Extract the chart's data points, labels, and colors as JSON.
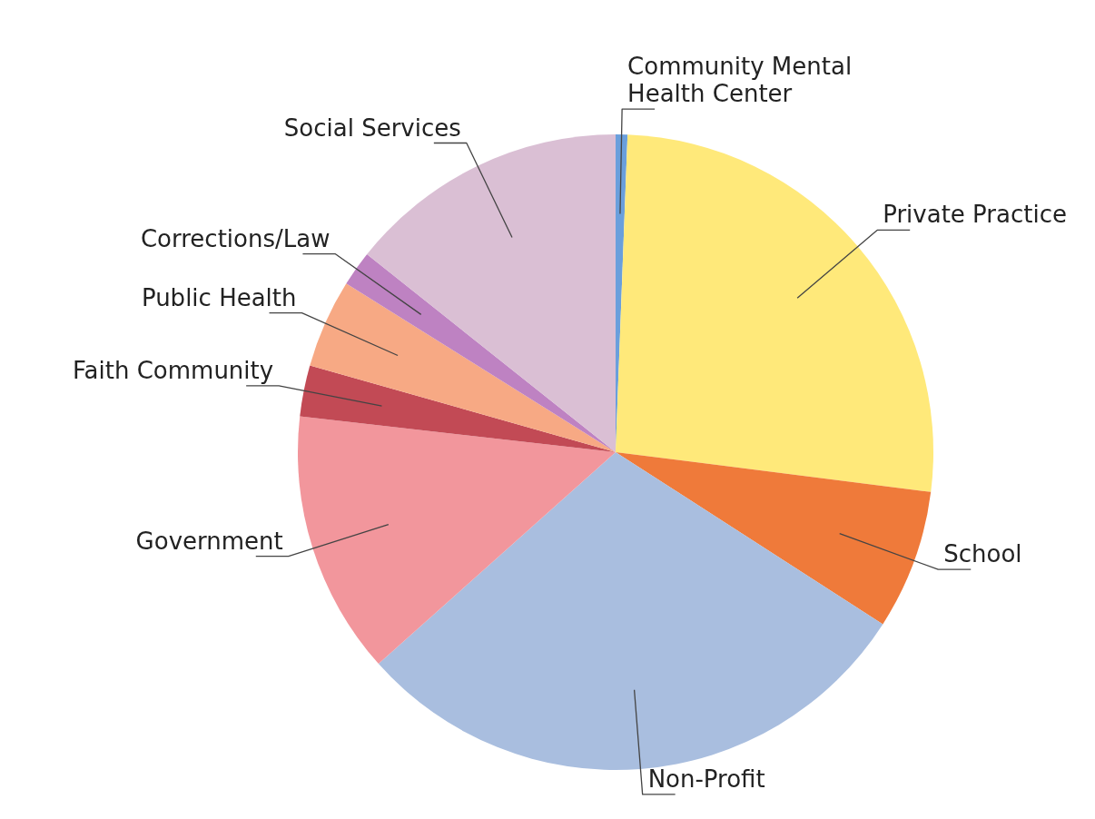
{
  "chart_data": {
    "type": "pie",
    "categories": [
      "Community Mental Health Center",
      "Private Practice",
      "School",
      "Non-Profit",
      "Government",
      "Faith Community",
      "Public Health",
      "Corrections/Law",
      "Social Services"
    ],
    "values": [
      0.6,
      26.4,
      7.1,
      29.3,
      13.4,
      2.6,
      4.5,
      1.8,
      14.3
    ],
    "colors": [
      "#6a9fdc",
      "#ffe97a",
      "#ef7a3a",
      "#a9bedf",
      "#f2969c",
      "#c24a55",
      "#f7a984",
      "#be82c2",
      "#dabfd4"
    ]
  }
}
